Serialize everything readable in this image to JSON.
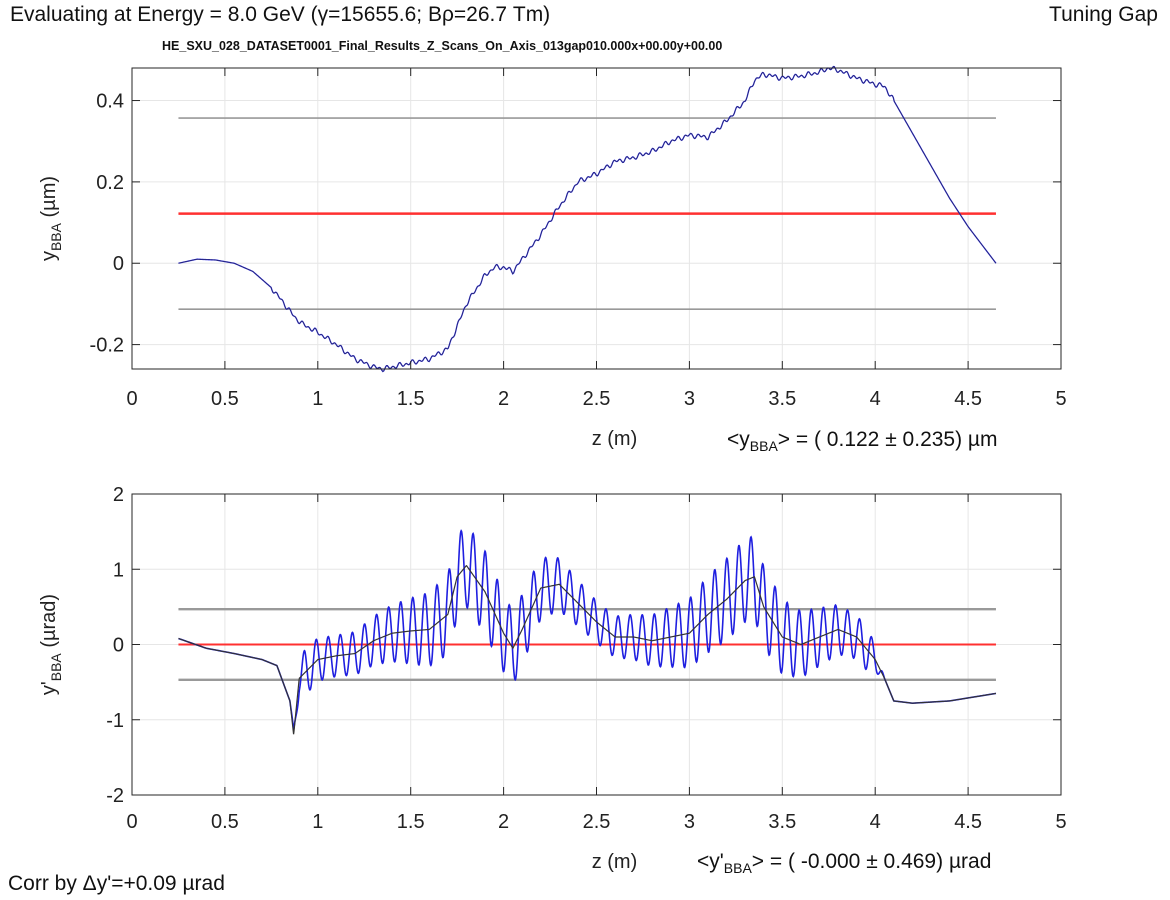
{
  "header": {
    "energy_text": "Evaluating at Energy =  8.0 GeV (γ=15655.6; Bρ=26.7 Tm)",
    "mode_text": "Tuning Gap",
    "dataset_title": "HE_SXU_028_DATASET0001_Final_Results_Z_Scans_On_Axis_013gap010.000x+00.00y+00.00"
  },
  "footer": {
    "correction_text": "Corr by Δy'=+0.09 µrad"
  },
  "colors": {
    "signal": "#1f1fe0",
    "smoothed": "#333333",
    "mean_line": "#ff3030",
    "band_line": "#999999",
    "axis": "#262626",
    "grid": "#e6e6e6"
  },
  "chart_data": [
    {
      "type": "line",
      "xlabel": "z (m)",
      "ylabel_main": "y",
      "ylabel_sub": "BBA",
      "ylabel_unit": " (µm)",
      "xlim": [
        0,
        5
      ],
      "ylim": [
        -0.26,
        0.48
      ],
      "xticks": [
        0,
        0.5,
        1,
        1.5,
        2,
        2.5,
        3,
        3.5,
        4,
        4.5,
        5
      ],
      "xtick_labels": [
        "0",
        "0.5",
        "1",
        "1.5",
        "2",
        "2.5",
        "3",
        "3.5",
        "4",
        "4.5",
        "5"
      ],
      "yticks": [
        -0.2,
        0,
        0.2,
        0.4
      ],
      "ytick_labels": [
        "-0.2",
        "0",
        "0.2",
        "0.4"
      ],
      "grid": true,
      "mean_value": 0.122,
      "band": [
        -0.113,
        0.357
      ],
      "band_x": [
        0.25,
        4.65
      ],
      "stat_prefix": "<y",
      "stat_sub": "BBA",
      "stat_suffix": "> = (  0.122 ± 0.235) µm",
      "series": [
        {
          "x": [
            0.25,
            0.35,
            0.45,
            0.55,
            0.65,
            0.75,
            0.82,
            0.88,
            0.92,
            1.0,
            1.1,
            1.2,
            1.3,
            1.35,
            1.4,
            1.5,
            1.6,
            1.7,
            1.8,
            1.9,
            1.95,
            2.0,
            2.05,
            2.1,
            2.2,
            2.3,
            2.4,
            2.5,
            2.6,
            2.7,
            2.8,
            2.9,
            3.0,
            3.1,
            3.2,
            3.3,
            3.35,
            3.4,
            3.5,
            3.6,
            3.7,
            3.75,
            3.8,
            3.9,
            4.0,
            4.05,
            4.1,
            4.2,
            4.3,
            4.4,
            4.5,
            4.65
          ],
          "y": [
            0.0,
            0.01,
            0.008,
            0.0,
            -0.02,
            -0.06,
            -0.1,
            -0.135,
            -0.15,
            -0.17,
            -0.2,
            -0.235,
            -0.255,
            -0.26,
            -0.255,
            -0.245,
            -0.235,
            -0.21,
            -0.1,
            -0.03,
            -0.01,
            -0.01,
            -0.02,
            0.01,
            0.07,
            0.14,
            0.2,
            0.22,
            0.25,
            0.26,
            0.275,
            0.3,
            0.315,
            0.31,
            0.35,
            0.4,
            0.45,
            0.465,
            0.455,
            0.46,
            0.47,
            0.48,
            0.475,
            0.455,
            0.44,
            0.435,
            0.4,
            0.32,
            0.24,
            0.16,
            0.09,
            0.0
          ]
        }
      ]
    },
    {
      "type": "line",
      "xlabel": "z (m)",
      "ylabel_main": "y'",
      "ylabel_sub": "BBA",
      "ylabel_unit": " (µrad)",
      "xlim": [
        0,
        5
      ],
      "ylim": [
        -2,
        2
      ],
      "xticks": [
        0,
        0.5,
        1,
        1.5,
        2,
        2.5,
        3,
        3.5,
        4,
        4.5,
        5
      ],
      "xtick_labels": [
        "0",
        "0.5",
        "1",
        "1.5",
        "2",
        "2.5",
        "3",
        "3.5",
        "4",
        "4.5",
        "5"
      ],
      "yticks": [
        -2,
        -1,
        0,
        1,
        2
      ],
      "ytick_labels": [
        "-2",
        "-1",
        "0",
        "1",
        "2"
      ],
      "grid": true,
      "mean_value": 0.0,
      "band": [
        -0.469,
        0.469
      ],
      "band_x": [
        0.25,
        4.65
      ],
      "stat_prefix": "<y'",
      "stat_sub": "BBA",
      "stat_suffix": "> = ( -0.000 ± 0.469) µrad",
      "oscillation_range": [
        0.85,
        4.05
      ],
      "oscillation_period": 0.065,
      "oscillation_amplitude": 0.55,
      "series": [
        {
          "x": [
            0.25,
            0.4,
            0.55,
            0.7,
            0.78,
            0.82,
            0.85,
            0.87,
            0.9,
            1.0,
            1.1,
            1.2,
            1.3,
            1.4,
            1.5,
            1.6,
            1.7,
            1.75,
            1.8,
            1.9,
            2.0,
            2.05,
            2.1,
            2.2,
            2.3,
            2.4,
            2.5,
            2.6,
            2.7,
            2.8,
            2.9,
            3.0,
            3.1,
            3.2,
            3.3,
            3.35,
            3.4,
            3.5,
            3.6,
            3.7,
            3.8,
            3.9,
            4.0,
            4.05,
            4.1,
            4.2,
            4.4,
            4.65
          ],
          "y": [
            0.08,
            -0.05,
            -0.12,
            -0.2,
            -0.28,
            -0.55,
            -0.75,
            -1.2,
            -0.45,
            -0.2,
            -0.15,
            -0.12,
            0.05,
            0.15,
            0.18,
            0.2,
            0.4,
            0.9,
            1.05,
            0.7,
            0.15,
            -0.05,
            0.2,
            0.75,
            0.8,
            0.55,
            0.3,
            0.1,
            0.1,
            0.05,
            0.1,
            0.15,
            0.4,
            0.6,
            0.85,
            0.9,
            0.5,
            0.1,
            0.0,
            0.1,
            0.2,
            0.1,
            -0.2,
            -0.45,
            -0.75,
            -0.78,
            -0.75,
            -0.65
          ]
        }
      ]
    }
  ]
}
